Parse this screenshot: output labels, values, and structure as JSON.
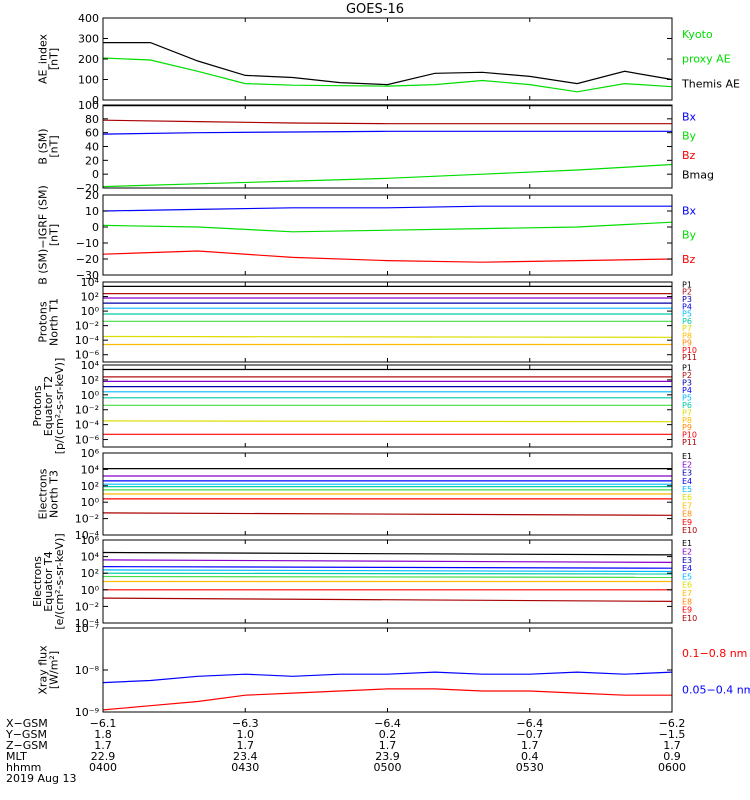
{
  "title": "GOES-16",
  "colors": {
    "black": "#000000",
    "red": "#ff0000",
    "green": "#00dd00",
    "blue": "#0000ff",
    "darkred": "#aa0000",
    "brown": "#b01010",
    "purple": "#8800cc",
    "navy": "#0000aa",
    "cyan": "#00bbff",
    "teal": "#00ccaa",
    "lime": "#44dd44",
    "yellow": "#dddd00",
    "gold": "#ffbb00",
    "orange": "#ff8800",
    "magenta": "#cc0055"
  },
  "chart_data": [
    {
      "type": "line",
      "ylabel": [
        "AE_index",
        "[nT]"
      ],
      "ylim": [
        0,
        400
      ],
      "yticks": [
        {
          "v": 0,
          "label": "0"
        },
        {
          "v": 100,
          "label": "100"
        },
        {
          "v": 200,
          "label": "200"
        },
        {
          "v": 300,
          "label": "300"
        },
        {
          "v": 400,
          "label": "400"
        }
      ],
      "x": [
        0,
        10,
        20,
        30,
        40,
        50,
        60,
        70,
        80,
        90,
        100,
        110,
        120
      ],
      "series": [
        {
          "name": "Kyoto proxy AE",
          "color": "green",
          "values": [
            205,
            195,
            140,
            80,
            72,
            70,
            68,
            75,
            95,
            75,
            40,
            80,
            65
          ]
        },
        {
          "name": "Themis AE",
          "color": "black",
          "values": [
            280,
            280,
            190,
            120,
            110,
            85,
            75,
            130,
            135,
            115,
            80,
            140,
            100
          ]
        }
      ],
      "legend": [
        {
          "text": "Kyoto",
          "color": "green"
        },
        {
          "text": "proxy AE",
          "color": "green"
        },
        {
          "text": "Themis AE",
          "color": "black"
        }
      ]
    },
    {
      "type": "line",
      "ylabel": [
        "B (SM)",
        "[nT]"
      ],
      "ylim": [
        -20,
        100
      ],
      "yticks": [
        {
          "v": -20,
          "label": "−20"
        },
        {
          "v": 0,
          "label": "0"
        },
        {
          "v": 20,
          "label": "20"
        },
        {
          "v": 40,
          "label": "40"
        },
        {
          "v": 60,
          "label": "60"
        },
        {
          "v": 80,
          "label": "80"
        },
        {
          "v": 100,
          "label": "100"
        }
      ],
      "x": [
        0,
        20,
        40,
        60,
        80,
        100,
        120
      ],
      "series": [
        {
          "name": "Bmag",
          "color": "black",
          "values": [
            99,
            99,
            99,
            99,
            99,
            99,
            99
          ]
        },
        {
          "name": "Bz",
          "color": "darkred",
          "values": [
            78,
            76,
            74,
            73,
            73,
            73,
            73
          ]
        },
        {
          "name": "Bx",
          "color": "blue",
          "values": [
            58,
            60,
            61,
            62,
            62,
            62,
            62
          ]
        },
        {
          "name": "By",
          "color": "green",
          "values": [
            -18,
            -14,
            -10,
            -6,
            0,
            6,
            14
          ]
        }
      ],
      "legend": [
        {
          "text": "Bx",
          "color": "blue"
        },
        {
          "text": "By",
          "color": "green"
        },
        {
          "text": "Bz",
          "color": "red"
        },
        {
          "text": "Bmag",
          "color": "black"
        }
      ]
    },
    {
      "type": "line",
      "ylabel": [
        "B (SM)−IGRF (SM)",
        "[nT]"
      ],
      "ylim": [
        -30,
        20
      ],
      "yticks": [
        {
          "v": -30,
          "label": "−30"
        },
        {
          "v": -20,
          "label": "−20"
        },
        {
          "v": -10,
          "label": "−10"
        },
        {
          "v": 0,
          "label": "0"
        },
        {
          "v": 10,
          "label": "10"
        },
        {
          "v": 20,
          "label": "20"
        }
      ],
      "x": [
        0,
        20,
        40,
        60,
        80,
        100,
        120
      ],
      "series": [
        {
          "name": "Bx",
          "color": "blue",
          "values": [
            10,
            11,
            12,
            12,
            13,
            13,
            13
          ]
        },
        {
          "name": "By",
          "color": "green",
          "values": [
            1,
            0,
            -3,
            -2,
            -1,
            0,
            3
          ]
        },
        {
          "name": "Bz",
          "color": "red",
          "values": [
            -17,
            -15,
            -19,
            -21,
            -22,
            -21,
            -20
          ]
        }
      ],
      "legend": [
        {
          "text": "Bx",
          "color": "blue"
        },
        {
          "text": "By",
          "color": "green"
        },
        {
          "text": "Bz",
          "color": "red"
        }
      ]
    },
    {
      "type": "line",
      "ylabel": [
        "Protons",
        "North T1"
      ],
      "ylog": true,
      "ylim": [
        -7,
        4
      ],
      "yticks": [
        {
          "v": -6,
          "label": "10⁻⁶"
        },
        {
          "v": -4,
          "label": "10⁻⁴"
        },
        {
          "v": -2,
          "label": "10⁻²"
        },
        {
          "v": 0,
          "label": "10⁰"
        },
        {
          "v": 2,
          "label": "10²"
        },
        {
          "v": 4,
          "label": "10⁴"
        }
      ],
      "x": [
        0,
        120
      ],
      "series": [
        {
          "name": "P1",
          "color": "black",
          "values": [
            3.4,
            3.4
          ]
        },
        {
          "name": "P2",
          "color": "brown",
          "values": [
            2.4,
            2.4
          ]
        },
        {
          "name": "P3",
          "color": "purple",
          "values": [
            1.8,
            1.8
          ]
        },
        {
          "name": "P4",
          "color": "navy",
          "values": [
            1.1,
            1.1
          ]
        },
        {
          "name": "P5",
          "color": "cyan",
          "values": [
            0.4,
            0.4
          ]
        },
        {
          "name": "P6",
          "color": "teal",
          "values": [
            -0.4,
            -0.4
          ]
        },
        {
          "name": "P7",
          "color": "lime",
          "values": [
            -1.4,
            -1.4
          ]
        },
        {
          "name": "P8",
          "color": "yellow",
          "values": [
            -3.5,
            -3.6
          ]
        },
        {
          "name": "P9",
          "color": "gold",
          "values": [
            -4.6,
            -4.6
          ]
        }
      ],
      "labels": [
        {
          "text": "P1",
          "color": "black"
        },
        {
          "text": "P2",
          "color": "brown"
        },
        {
          "text": "P3",
          "color": "navy"
        },
        {
          "text": "P4",
          "color": "blue"
        },
        {
          "text": "P5",
          "color": "cyan"
        },
        {
          "text": "P6",
          "color": "teal"
        },
        {
          "text": "P7",
          "color": "yellow"
        },
        {
          "text": "P8",
          "color": "gold"
        },
        {
          "text": "P9",
          "color": "orange"
        },
        {
          "text": "P10",
          "color": "red"
        },
        {
          "text": "P11",
          "color": "darkred"
        }
      ]
    },
    {
      "type": "line",
      "ylabel": [
        "Protons",
        "Equator T2",
        "[p/(cm²-s-sr-keV)]"
      ],
      "ylog": true,
      "ylim": [
        -7,
        4
      ],
      "yticks": [
        {
          "v": -6,
          "label": "10⁻⁶"
        },
        {
          "v": -4,
          "label": "10⁻⁴"
        },
        {
          "v": -2,
          "label": "10⁻²"
        },
        {
          "v": 0,
          "label": "10⁰"
        },
        {
          "v": 2,
          "label": "10²"
        },
        {
          "v": 4,
          "label": "10⁴"
        }
      ],
      "x": [
        0,
        120
      ],
      "series": [
        {
          "name": "P1",
          "color": "black",
          "values": [
            3.4,
            3.4
          ]
        },
        {
          "name": "P2",
          "color": "brown",
          "values": [
            2.4,
            2.4
          ]
        },
        {
          "name": "P3",
          "color": "purple",
          "values": [
            1.8,
            1.8
          ]
        },
        {
          "name": "P4",
          "color": "navy",
          "values": [
            1.1,
            1.1
          ]
        },
        {
          "name": "P5",
          "color": "cyan",
          "values": [
            0.4,
            0.4
          ]
        },
        {
          "name": "P6",
          "color": "teal",
          "values": [
            -0.4,
            -0.4
          ]
        },
        {
          "name": "P7",
          "color": "lime",
          "values": [
            -1.4,
            -1.4
          ]
        },
        {
          "name": "P8",
          "color": "yellow",
          "values": [
            -3.5,
            -3.6
          ]
        },
        {
          "name": "P10",
          "color": "red",
          "values": [
            -5.3,
            -5.3
          ]
        }
      ],
      "labels": [
        {
          "text": "P1",
          "color": "black"
        },
        {
          "text": "P2",
          "color": "brown"
        },
        {
          "text": "P3",
          "color": "navy"
        },
        {
          "text": "P4",
          "color": "blue"
        },
        {
          "text": "P5",
          "color": "cyan"
        },
        {
          "text": "P6",
          "color": "teal"
        },
        {
          "text": "P7",
          "color": "yellow"
        },
        {
          "text": "P8",
          "color": "gold"
        },
        {
          "text": "P9",
          "color": "orange"
        },
        {
          "text": "P10",
          "color": "red"
        },
        {
          "text": "P11",
          "color": "darkred"
        }
      ]
    },
    {
      "type": "line",
      "ylabel": [
        "Electrons",
        "North T3"
      ],
      "ylog": true,
      "ylim": [
        -4,
        6
      ],
      "yticks": [
        {
          "v": -4,
          "label": "10⁻⁴"
        },
        {
          "v": -2,
          "label": "10⁻²"
        },
        {
          "v": 0,
          "label": "10⁰"
        },
        {
          "v": 2,
          "label": "10²"
        },
        {
          "v": 4,
          "label": "10⁴"
        },
        {
          "v": 6,
          "label": "10⁶"
        }
      ],
      "x": [
        0,
        120
      ],
      "series": [
        {
          "name": "E1",
          "color": "black",
          "values": [
            4.1,
            4.1
          ]
        },
        {
          "name": "E2",
          "color": "purple",
          "values": [
            3.2,
            3.2
          ]
        },
        {
          "name": "E3",
          "color": "blue",
          "values": [
            2.6,
            2.6
          ]
        },
        {
          "name": "E4",
          "color": "cyan",
          "values": [
            2.2,
            2.2
          ]
        },
        {
          "name": "E5",
          "color": "teal",
          "values": [
            1.9,
            1.9
          ]
        },
        {
          "name": "E6",
          "color": "lime",
          "values": [
            1.5,
            1.5
          ]
        },
        {
          "name": "E7",
          "color": "gold",
          "values": [
            1.0,
            1.0
          ]
        },
        {
          "name": "E8",
          "color": "red",
          "values": [
            0.4,
            0.4
          ]
        },
        {
          "name": "E9",
          "color": "darkred",
          "values": [
            -1.3,
            -1.6
          ]
        }
      ],
      "labels": [
        {
          "text": "E1",
          "color": "black"
        },
        {
          "text": "E2",
          "color": "purple"
        },
        {
          "text": "E3",
          "color": "navy"
        },
        {
          "text": "E4",
          "color": "blue"
        },
        {
          "text": "E5",
          "color": "cyan"
        },
        {
          "text": "E6",
          "color": "yellow"
        },
        {
          "text": "E7",
          "color": "gold"
        },
        {
          "text": "E8",
          "color": "orange"
        },
        {
          "text": "E9",
          "color": "red"
        },
        {
          "text": "E10",
          "color": "darkred"
        }
      ]
    },
    {
      "type": "line",
      "ylabel": [
        "Electrons",
        "Equator T4",
        "[e/(cm²-s-sr-keV)]"
      ],
      "ylog": true,
      "ylim": [
        -4,
        6
      ],
      "yticks": [
        {
          "v": -4,
          "label": "10⁻⁴"
        },
        {
          "v": -2,
          "label": "10⁻²"
        },
        {
          "v": 0,
          "label": "10⁰"
        },
        {
          "v": 2,
          "label": "10²"
        },
        {
          "v": 4,
          "label": "10⁴"
        },
        {
          "v": 6,
          "label": "10⁶"
        }
      ],
      "x": [
        0,
        120
      ],
      "series": [
        {
          "name": "E1",
          "color": "black",
          "values": [
            4.5,
            4.2
          ]
        },
        {
          "name": "E2",
          "color": "purple",
          "values": [
            3.6,
            3.3
          ]
        },
        {
          "name": "E3",
          "color": "blue",
          "values": [
            2.8,
            2.6
          ]
        },
        {
          "name": "E4",
          "color": "cyan",
          "values": [
            2.4,
            2.2
          ]
        },
        {
          "name": "E5",
          "color": "teal",
          "values": [
            2.0,
            1.9
          ]
        },
        {
          "name": "E6",
          "color": "lime",
          "values": [
            1.6,
            1.5
          ]
        },
        {
          "name": "E7",
          "color": "gold",
          "values": [
            1.0,
            1.0
          ]
        },
        {
          "name": "E8",
          "color": "red",
          "values": [
            0.0,
            0.0
          ]
        },
        {
          "name": "E9",
          "color": "darkred",
          "values": [
            -1.0,
            -1.4
          ]
        }
      ],
      "labels": [
        {
          "text": "E1",
          "color": "black"
        },
        {
          "text": "E2",
          "color": "purple"
        },
        {
          "text": "E3",
          "color": "navy"
        },
        {
          "text": "E4",
          "color": "blue"
        },
        {
          "text": "E5",
          "color": "cyan"
        },
        {
          "text": "E6",
          "color": "yellow"
        },
        {
          "text": "E7",
          "color": "gold"
        },
        {
          "text": "E8",
          "color": "orange"
        },
        {
          "text": "E9",
          "color": "red"
        },
        {
          "text": "E10",
          "color": "darkred"
        }
      ]
    },
    {
      "type": "line",
      "ylabel": [
        "Xray flux",
        "[W/m²]"
      ],
      "ylog": true,
      "ylim": [
        -9,
        -7
      ],
      "yticks": [
        {
          "v": -9,
          "label": "10⁻⁹"
        },
        {
          "v": -8,
          "label": "10⁻⁸"
        },
        {
          "v": -7,
          "label": "10⁻⁷"
        }
      ],
      "x": [
        0,
        10,
        20,
        30,
        40,
        50,
        60,
        70,
        80,
        90,
        100,
        110,
        120
      ],
      "series": [
        {
          "name": "0.05−0.4 nm",
          "color": "blue",
          "values": [
            -8.3,
            -8.25,
            -8.15,
            -8.1,
            -8.15,
            -8.1,
            -8.1,
            -8.05,
            -8.1,
            -8.1,
            -8.05,
            -8.1,
            -8.05
          ]
        },
        {
          "name": "0.1−0.8 nm",
          "color": "red",
          "values": [
            -8.95,
            -8.85,
            -8.75,
            -8.6,
            -8.55,
            -8.5,
            -8.45,
            -8.45,
            -8.5,
            -8.5,
            -8.55,
            -8.6,
            -8.6
          ]
        }
      ],
      "legend": [
        {
          "text": "0.1−0.8 nm",
          "color": "red"
        },
        {
          "text": "0.05−0.4 nm",
          "color": "blue"
        }
      ]
    }
  ],
  "x_axis": {
    "tick_minutes": [
      0,
      30,
      60,
      90,
      120
    ],
    "rows": [
      {
        "label": "X−GSM",
        "values": [
          "−6.1",
          "−6.3",
          "−6.4",
          "−6.4",
          "−6.2"
        ]
      },
      {
        "label": "Y−GSM",
        "values": [
          "1.8",
          "1.0",
          "0.2",
          "−0.7",
          "−1.5"
        ]
      },
      {
        "label": "Z−GSM",
        "values": [
          "1.7",
          "1.7",
          "1.7",
          "1.7",
          "1.7"
        ]
      },
      {
        "label": "MLT",
        "values": [
          "22.9",
          "23.4",
          "23.9",
          "0.4",
          "0.9"
        ]
      },
      {
        "label": "hhmm",
        "values": [
          "0400",
          "0430",
          "0500",
          "0530",
          "0600"
        ]
      }
    ],
    "date": "2019 Aug 13"
  }
}
